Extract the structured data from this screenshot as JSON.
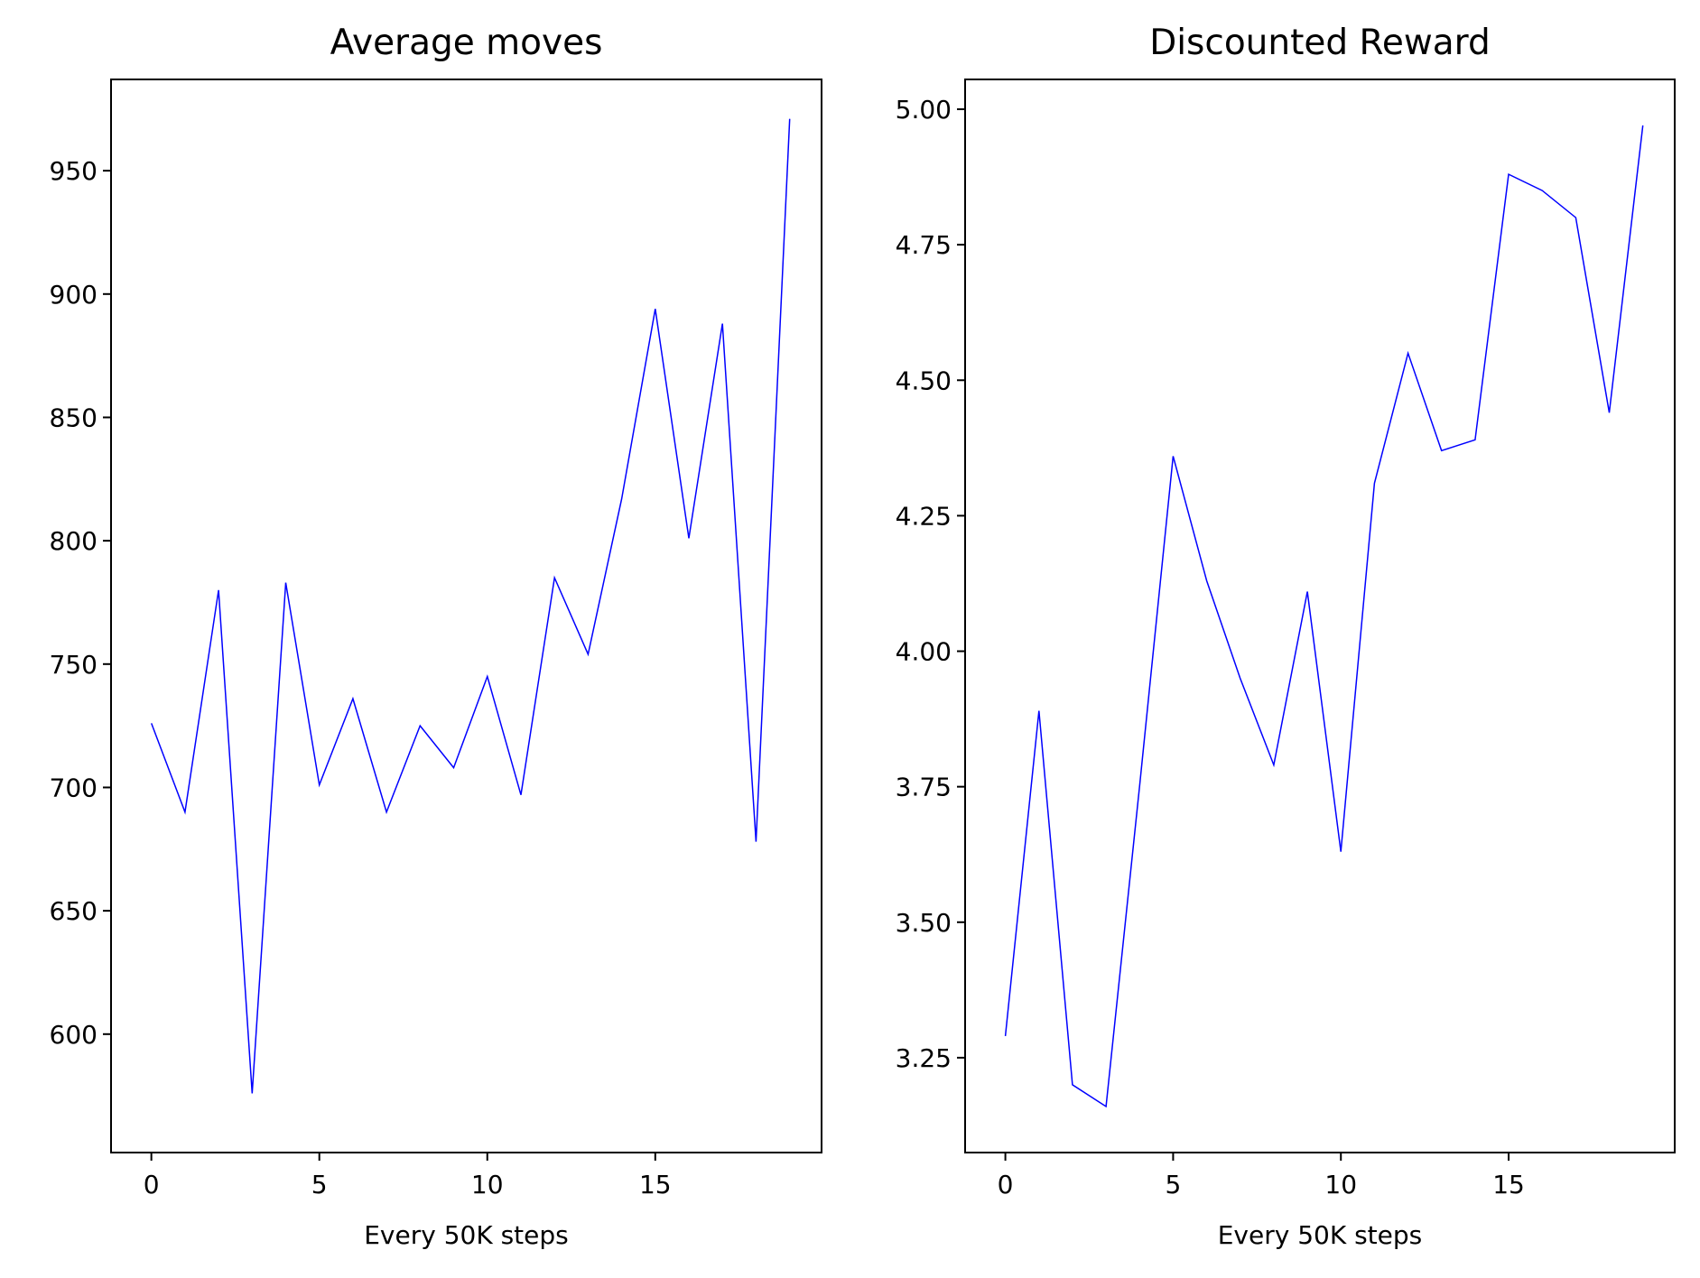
{
  "chart_data": [
    {
      "type": "line",
      "title": "Average moves",
      "xlabel": "Every 50K steps",
      "ylabel": "",
      "xlim": [
        -1.2,
        19.95
      ],
      "ylim": [
        552,
        987
      ],
      "xticks": [
        0,
        5,
        10,
        15
      ],
      "xtick_labels": [
        "0",
        "5",
        "10",
        "15"
      ],
      "yticks": [
        600,
        650,
        700,
        750,
        800,
        850,
        900,
        950
      ],
      "ytick_labels": [
        "600",
        "650",
        "700",
        "750",
        "800",
        "850",
        "900",
        "950"
      ],
      "grid": false,
      "color": "#0000ff",
      "series": [
        {
          "x": [
            0,
            1,
            2,
            3,
            4,
            5,
            6,
            7,
            8,
            9,
            10,
            11,
            12,
            13,
            14,
            15,
            16,
            17,
            18,
            19
          ],
          "values": [
            726,
            690,
            780,
            576,
            783,
            701,
            736,
            690,
            725,
            708,
            745,
            697,
            785,
            754,
            817,
            894,
            801,
            888,
            678,
            971
          ]
        }
      ]
    },
    {
      "type": "line",
      "title": "Discounted Reward",
      "xlabel": "Every 50K steps",
      "ylabel": "",
      "xlim": [
        -1.2,
        19.95
      ],
      "ylim": [
        3.075,
        5.055
      ],
      "xticks": [
        0,
        5,
        10,
        15
      ],
      "xtick_labels": [
        "0",
        "5",
        "10",
        "15"
      ],
      "yticks": [
        3.25,
        3.5,
        3.75,
        4.0,
        4.25,
        4.5,
        4.75,
        5.0
      ],
      "ytick_labels": [
        "3.25",
        "3.50",
        "3.75",
        "4.00",
        "4.25",
        "4.50",
        "4.75",
        "5.00"
      ],
      "grid": false,
      "color": "#0000ff",
      "series": [
        {
          "x": [
            0,
            1,
            2,
            3,
            4,
            5,
            6,
            7,
            8,
            9,
            10,
            11,
            12,
            13,
            14,
            15,
            16,
            17,
            18,
            19
          ],
          "values": [
            3.29,
            3.89,
            3.2,
            3.16,
            3.75,
            4.36,
            4.13,
            3.95,
            3.79,
            4.11,
            3.63,
            4.31,
            4.55,
            4.37,
            4.39,
            4.88,
            4.85,
            4.8,
            4.44,
            4.97
          ]
        }
      ]
    }
  ]
}
